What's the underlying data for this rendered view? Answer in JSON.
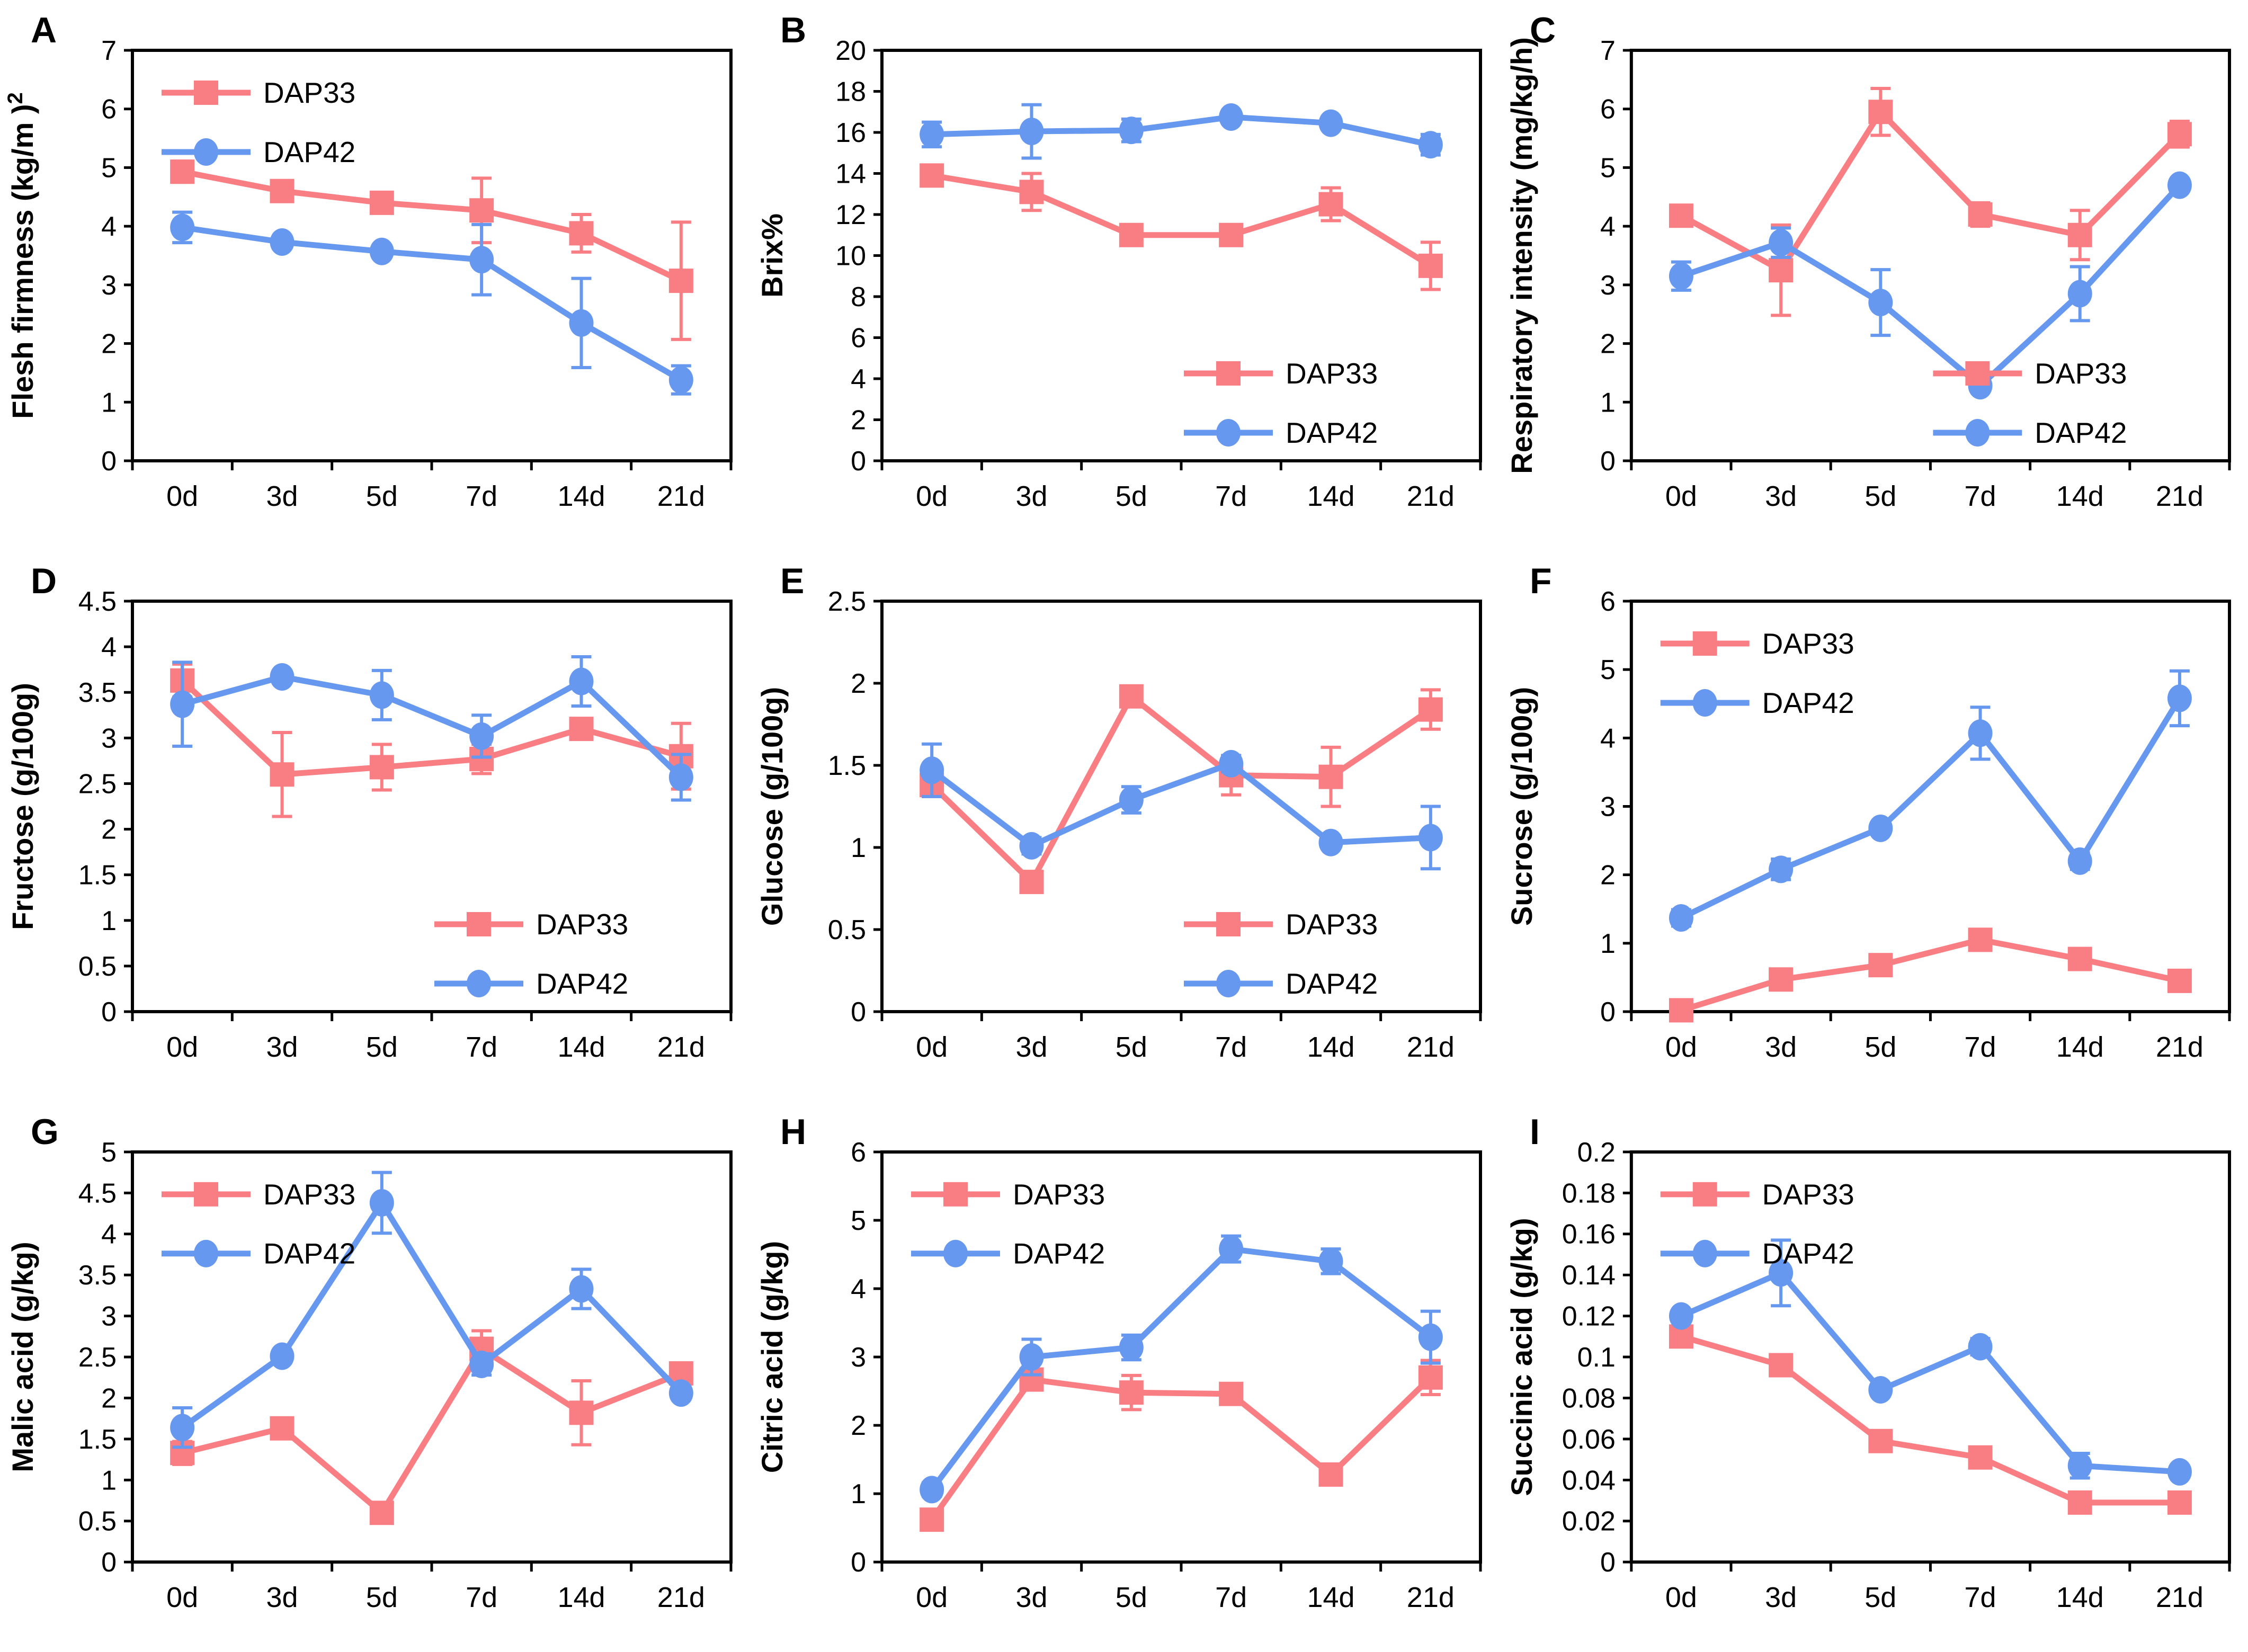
{
  "figure": {
    "x_categories": [
      "0d",
      "3d",
      "5d",
      "7d",
      "14d",
      "21d"
    ],
    "series_names": [
      "DAP33",
      "DAP42"
    ],
    "colors": {
      "dap33": "#F97E84",
      "dap42": "#6598EE",
      "axis": "#000000"
    }
  },
  "chart_data": [
    {
      "panel": "A",
      "type": "line",
      "ylabel": "Flesh firmness (kg/m )",
      "ylabel_sup": "2",
      "ylim": [
        0,
        7
      ],
      "yticks": [
        "0",
        "1",
        "2",
        "3",
        "4",
        "5",
        "6",
        "7"
      ],
      "legend_pos": "top-left",
      "grid": false,
      "categories": [
        "0d",
        "3d",
        "5d",
        "7d",
        "14d",
        "21d"
      ],
      "series": [
        {
          "name": "DAP33",
          "marker": "square",
          "color": "#F97E84",
          "values": [
            4.93,
            4.6,
            4.4,
            4.27,
            3.88,
            3.07
          ],
          "errors": [
            0.18,
            0.1,
            0.06,
            0.55,
            0.32,
            1.0
          ]
        },
        {
          "name": "DAP42",
          "marker": "circle",
          "color": "#6598EE",
          "values": [
            3.98,
            3.73,
            3.57,
            3.43,
            2.35,
            1.38
          ],
          "errors": [
            0.26,
            0.06,
            0.06,
            0.6,
            0.76,
            0.24
          ]
        }
      ]
    },
    {
      "panel": "B",
      "type": "line",
      "ylabel": "Brix%",
      "ylabel_sup": "",
      "ylim": [
        0,
        20
      ],
      "yticks": [
        "0",
        "2",
        "4",
        "6",
        "8",
        "10",
        "12",
        "14",
        "16",
        "18",
        "20"
      ],
      "legend_pos": "bottom-right",
      "grid": false,
      "categories": [
        "0d",
        "3d",
        "5d",
        "7d",
        "14d",
        "21d"
      ],
      "series": [
        {
          "name": "DAP33",
          "marker": "square",
          "color": "#F97E84",
          "values": [
            13.9,
            13.1,
            11.0,
            11.0,
            12.5,
            9.5
          ],
          "errors": [
            0.15,
            0.9,
            0.5,
            0.5,
            0.8,
            1.15
          ]
        },
        {
          "name": "DAP42",
          "marker": "circle",
          "color": "#6598EE",
          "values": [
            15.9,
            16.05,
            16.1,
            16.75,
            16.45,
            15.4
          ],
          "errors": [
            0.6,
            1.3,
            0.55,
            0.15,
            0.3,
            0.5
          ]
        }
      ]
    },
    {
      "panel": "C",
      "type": "line",
      "ylabel": "Respiratory intensity (mg/kg/h)",
      "ylabel_sup": "",
      "ylim": [
        0,
        7
      ],
      "yticks": [
        "0",
        "1",
        "2",
        "3",
        "4",
        "5",
        "6",
        "7"
      ],
      "legend_pos": "bottom-right",
      "grid": false,
      "categories": [
        "0d",
        "3d",
        "5d",
        "7d",
        "14d",
        "21d"
      ],
      "series": [
        {
          "name": "DAP33",
          "marker": "square",
          "color": "#F97E84",
          "values": [
            4.18,
            3.25,
            5.95,
            4.2,
            3.85,
            5.57
          ],
          "errors": [
            0.17,
            0.77,
            0.4,
            0.2,
            0.42,
            0.22
          ]
        },
        {
          "name": "DAP42",
          "marker": "circle",
          "color": "#6598EE",
          "values": [
            3.15,
            3.72,
            2.7,
            1.28,
            2.85,
            4.7
          ],
          "errors": [
            0.24,
            0.25,
            0.56,
            0.1,
            0.46,
            0.1
          ]
        }
      ]
    },
    {
      "panel": "D",
      "type": "line",
      "ylabel": "Fructose (g/100g)",
      "ylabel_sup": "",
      "ylim": [
        0,
        4.5
      ],
      "yticks": [
        "0",
        "0.5",
        "1",
        "1.5",
        "2",
        "2.5",
        "3",
        "3.5",
        "4",
        "4.5"
      ],
      "legend_pos": "bottom-right",
      "grid": false,
      "categories": [
        "0d",
        "3d",
        "5d",
        "7d",
        "14d",
        "21d"
      ],
      "series": [
        {
          "name": "DAP33",
          "marker": "square",
          "color": "#F97E84",
          "values": [
            3.63,
            2.6,
            2.68,
            2.77,
            3.1,
            2.8
          ],
          "errors": [
            0.18,
            0.46,
            0.25,
            0.16,
            0.05,
            0.36
          ]
        },
        {
          "name": "DAP42",
          "marker": "circle",
          "color": "#6598EE",
          "values": [
            3.37,
            3.67,
            3.47,
            3.02,
            3.62,
            2.57
          ],
          "errors": [
            0.46,
            0.07,
            0.27,
            0.23,
            0.27,
            0.25
          ]
        }
      ]
    },
    {
      "panel": "E",
      "type": "line",
      "ylabel": "Glucose (g/100g)",
      "ylabel_sup": "",
      "ylim": [
        0,
        2.5
      ],
      "yticks": [
        "0",
        "0.5",
        "1",
        "1.5",
        "2",
        "2.5"
      ],
      "legend_pos": "bottom-right",
      "grid": false,
      "categories": [
        "0d",
        "3d",
        "5d",
        "7d",
        "14d",
        "21d"
      ],
      "series": [
        {
          "name": "DAP33",
          "marker": "square",
          "color": "#F97E84",
          "values": [
            1.38,
            0.79,
            1.92,
            1.44,
            1.43,
            1.84
          ],
          "errors": [
            0.07,
            0.04,
            0.06,
            0.12,
            0.18,
            0.12
          ]
        },
        {
          "name": "DAP42",
          "marker": "circle",
          "color": "#6598EE",
          "values": [
            1.47,
            1.01,
            1.29,
            1.51,
            1.03,
            1.06
          ],
          "errors": [
            0.16,
            0.05,
            0.08,
            0.05,
            0.03,
            0.19
          ]
        }
      ]
    },
    {
      "panel": "F",
      "type": "line",
      "ylabel": "Sucrose (g/100g)",
      "ylabel_sup": "",
      "ylim": [
        0,
        6
      ],
      "yticks": [
        "0",
        "1",
        "2",
        "3",
        "4",
        "5",
        "6"
      ],
      "legend_pos": "top-left",
      "grid": false,
      "categories": [
        "0d",
        "3d",
        "5d",
        "7d",
        "14d",
        "21d"
      ],
      "series": [
        {
          "name": "DAP33",
          "marker": "square",
          "color": "#F97E84",
          "values": [
            0.02,
            0.47,
            0.68,
            1.05,
            0.77,
            0.45
          ],
          "errors": [
            0.02,
            0.06,
            0.07,
            0.05,
            0.05,
            0.06
          ]
        },
        {
          "name": "DAP42",
          "marker": "circle",
          "color": "#6598EE",
          "values": [
            1.37,
            2.08,
            2.68,
            4.07,
            2.2,
            4.58
          ],
          "errors": [
            0.12,
            0.15,
            0.09,
            0.38,
            0.12,
            0.4
          ]
        }
      ]
    },
    {
      "panel": "G",
      "type": "line",
      "ylabel": "Malic acid (g/kg)",
      "ylabel_sup": "",
      "ylim": [
        0,
        5
      ],
      "yticks": [
        "0",
        "0.5",
        "1",
        "1.5",
        "2",
        "2.5",
        "3",
        "3.5",
        "4",
        "4.5",
        "5"
      ],
      "legend_pos": "top-left",
      "grid": false,
      "categories": [
        "0d",
        "3d",
        "5d",
        "7d",
        "14d",
        "21d"
      ],
      "series": [
        {
          "name": "DAP33",
          "marker": "square",
          "color": "#F97E84",
          "values": [
            1.33,
            1.63,
            0.6,
            2.6,
            1.82,
            2.3
          ],
          "errors": [
            0.14,
            0.06,
            0.07,
            0.22,
            0.39,
            0.06
          ]
        },
        {
          "name": "DAP42",
          "marker": "circle",
          "color": "#6598EE",
          "values": [
            1.64,
            2.51,
            4.38,
            2.41,
            3.33,
            2.06
          ],
          "errors": [
            0.24,
            0.05,
            0.37,
            0.13,
            0.24,
            0.08
          ]
        }
      ]
    },
    {
      "panel": "H",
      "type": "line",
      "ylabel": "Citric acid (g/kg)",
      "ylabel_sup": "",
      "ylim": [
        0,
        6
      ],
      "yticks": [
        "0",
        "1",
        "2",
        "3",
        "4",
        "5",
        "6"
      ],
      "legend_pos": "top-left",
      "grid": false,
      "categories": [
        "0d",
        "3d",
        "5d",
        "7d",
        "14d",
        "21d"
      ],
      "series": [
        {
          "name": "DAP33",
          "marker": "square",
          "color": "#F97E84",
          "values": [
            0.62,
            2.67,
            2.48,
            2.46,
            1.28,
            2.7
          ],
          "errors": [
            0.06,
            0.1,
            0.25,
            0.06,
            0.09,
            0.25
          ]
        },
        {
          "name": "DAP42",
          "marker": "circle",
          "color": "#6598EE",
          "values": [
            1.06,
            3.0,
            3.14,
            4.58,
            4.4,
            3.29
          ],
          "errors": [
            0.1,
            0.26,
            0.18,
            0.19,
            0.18,
            0.38
          ]
        }
      ]
    },
    {
      "panel": "I",
      "type": "line",
      "ylabel": "Succinic acid (g/kg)",
      "ylabel_sup": "",
      "ylim": [
        0,
        0.2
      ],
      "yticks": [
        "0",
        "0.02",
        "0.04",
        "0.06",
        "0.08",
        "0.1",
        "0.12",
        "0.14",
        "0.16",
        "0.18",
        "0.2"
      ],
      "legend_pos": "top-left",
      "grid": false,
      "categories": [
        "0d",
        "3d",
        "5d",
        "7d",
        "14d",
        "21d"
      ],
      "series": [
        {
          "name": "DAP33",
          "marker": "square",
          "color": "#F97E84",
          "values": [
            0.11,
            0.096,
            0.059,
            0.051,
            0.029,
            0.029
          ],
          "errors": [
            0.002,
            0.004,
            0.005,
            0.002,
            0.003,
            0.002
          ]
        },
        {
          "name": "DAP42",
          "marker": "circle",
          "color": "#6598EE",
          "values": [
            0.12,
            0.141,
            0.084,
            0.105,
            0.047,
            0.044
          ],
          "errors": [
            0.002,
            0.016,
            0.003,
            0.004,
            0.006,
            0.003
          ]
        }
      ]
    }
  ]
}
